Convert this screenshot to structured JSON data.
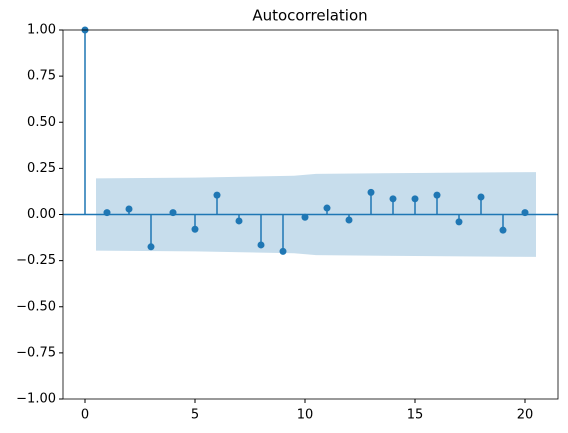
{
  "chart_data": {
    "type": "stem",
    "title": "Autocorrelation",
    "x": [
      0,
      1,
      2,
      3,
      4,
      5,
      6,
      7,
      8,
      9,
      10,
      11,
      12,
      13,
      14,
      15,
      16,
      17,
      18,
      19,
      20
    ],
    "values": [
      1.0,
      0.01,
      0.03,
      -0.175,
      0.01,
      -0.08,
      0.105,
      -0.035,
      -0.165,
      -0.2,
      -0.015,
      0.035,
      -0.03,
      0.12,
      0.085,
      0.085,
      0.105,
      -0.04,
      0.095,
      -0.085,
      0.01
    ],
    "color": "#1f77b4",
    "band": {
      "x": [
        0.5,
        5,
        9.5,
        10.5,
        15,
        20.5
      ],
      "upper": [
        0.196,
        0.2,
        0.21,
        0.22,
        0.225,
        0.23
      ],
      "lower": [
        -0.196,
        -0.2,
        -0.21,
        -0.22,
        -0.225,
        -0.23
      ]
    },
    "xlim": [
      -1,
      21.5
    ],
    "xticks": [
      0,
      5,
      10,
      15,
      20
    ],
    "ylim": [
      -1,
      1
    ],
    "yticks": [
      {
        "value": -1,
        "label": "−1.00"
      },
      {
        "value": -0.75,
        "label": "−0.75"
      },
      {
        "value": -0.5,
        "label": "−0.50"
      },
      {
        "value": -0.25,
        "label": "−0.25"
      },
      {
        "value": 0,
        "label": "0.00"
      },
      {
        "value": 0.25,
        "label": "0.25"
      },
      {
        "value": 0.5,
        "label": "0.50"
      },
      {
        "value": 0.75,
        "label": "0.75"
      },
      {
        "value": 1,
        "label": "1.00"
      }
    ]
  }
}
